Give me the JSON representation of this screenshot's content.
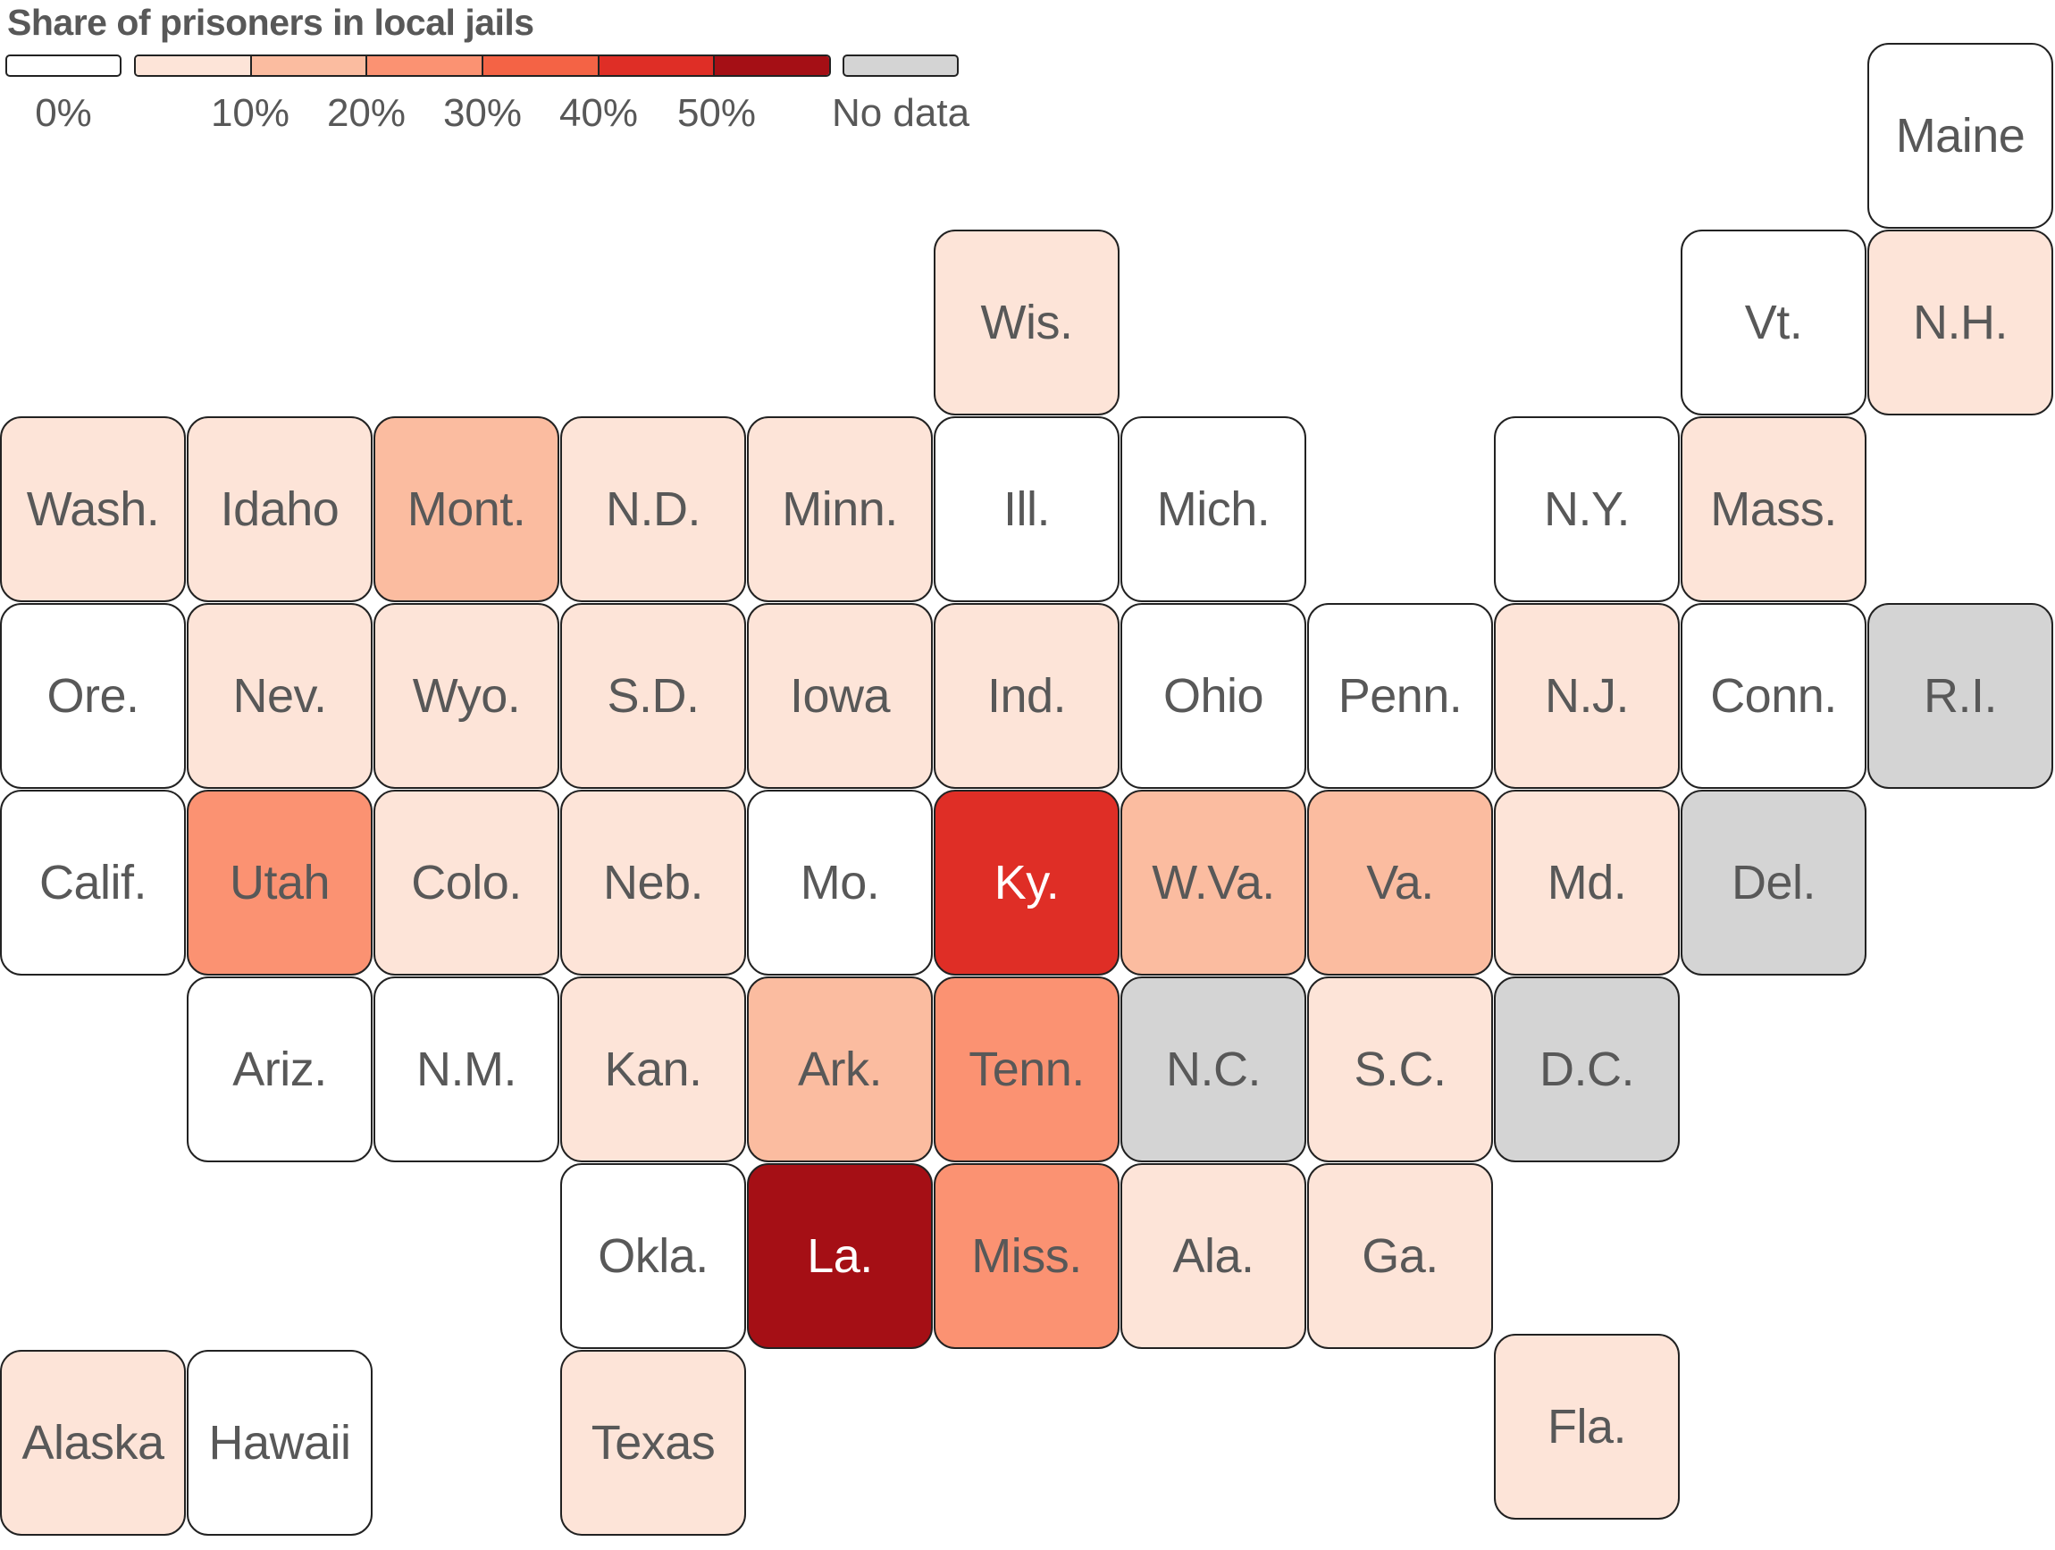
{
  "title": "Share of prisoners in local jails",
  "legend": {
    "zero_label": "0%",
    "tick_labels": [
      "10%",
      "20%",
      "30%",
      "40%",
      "50%"
    ],
    "no_data_label": "No data",
    "colors": {
      "zero": "#ffffff",
      "bins": [
        "#fde4d8",
        "#fbbca0",
        "#fb9272",
        "#f46345",
        "#df2e26",
        "#a50f15"
      ],
      "no_data": "#d4d4d4"
    }
  },
  "chart_data": {
    "type": "heatmap",
    "title": "Share of prisoners in local jails",
    "legend_bins": [
      "0%",
      "0-10%",
      "10-20%",
      "20-30%",
      "30-40%",
      "40-50%",
      "50%+",
      "No data"
    ],
    "states": [
      {
        "label": "Maine",
        "row": 0,
        "col": 10,
        "bin": "0%"
      },
      {
        "label": "Wis.",
        "row": 1,
        "col": 5,
        "bin": "0-10%"
      },
      {
        "label": "Vt.",
        "row": 1,
        "col": 9,
        "bin": "0%"
      },
      {
        "label": "N.H.",
        "row": 1,
        "col": 10,
        "bin": "0-10%"
      },
      {
        "label": "Wash.",
        "row": 2,
        "col": 0,
        "bin": "0-10%"
      },
      {
        "label": "Idaho",
        "row": 2,
        "col": 1,
        "bin": "0-10%"
      },
      {
        "label": "Mont.",
        "row": 2,
        "col": 2,
        "bin": "10-20%"
      },
      {
        "label": "N.D.",
        "row": 2,
        "col": 3,
        "bin": "0-10%"
      },
      {
        "label": "Minn.",
        "row": 2,
        "col": 4,
        "bin": "0-10%"
      },
      {
        "label": "Ill.",
        "row": 2,
        "col": 5,
        "bin": "0%"
      },
      {
        "label": "Mich.",
        "row": 2,
        "col": 6,
        "bin": "0%"
      },
      {
        "label": "N.Y.",
        "row": 2,
        "col": 8,
        "bin": "0%"
      },
      {
        "label": "Mass.",
        "row": 2,
        "col": 9,
        "bin": "0-10%"
      },
      {
        "label": "Ore.",
        "row": 3,
        "col": 0,
        "bin": "0%"
      },
      {
        "label": "Nev.",
        "row": 3,
        "col": 1,
        "bin": "0-10%"
      },
      {
        "label": "Wyo.",
        "row": 3,
        "col": 2,
        "bin": "0-10%"
      },
      {
        "label": "S.D.",
        "row": 3,
        "col": 3,
        "bin": "0-10%"
      },
      {
        "label": "Iowa",
        "row": 3,
        "col": 4,
        "bin": "0-10%"
      },
      {
        "label": "Ind.",
        "row": 3,
        "col": 5,
        "bin": "0-10%"
      },
      {
        "label": "Ohio",
        "row": 3,
        "col": 6,
        "bin": "0%"
      },
      {
        "label": "Penn.",
        "row": 3,
        "col": 7,
        "bin": "0%"
      },
      {
        "label": "N.J.",
        "row": 3,
        "col": 8,
        "bin": "0-10%"
      },
      {
        "label": "Conn.",
        "row": 3,
        "col": 9,
        "bin": "0%"
      },
      {
        "label": "R.I.",
        "row": 3,
        "col": 10,
        "bin": "No data"
      },
      {
        "label": "Calif.",
        "row": 4,
        "col": 0,
        "bin": "0%"
      },
      {
        "label": "Utah",
        "row": 4,
        "col": 1,
        "bin": "20-30%"
      },
      {
        "label": "Colo.",
        "row": 4,
        "col": 2,
        "bin": "0-10%"
      },
      {
        "label": "Neb.",
        "row": 4,
        "col": 3,
        "bin": "0-10%"
      },
      {
        "label": "Mo.",
        "row": 4,
        "col": 4,
        "bin": "0%"
      },
      {
        "label": "Ky.",
        "row": 4,
        "col": 5,
        "bin": "40-50%"
      },
      {
        "label": "W.Va.",
        "row": 4,
        "col": 6,
        "bin": "10-20%"
      },
      {
        "label": "Va.",
        "row": 4,
        "col": 7,
        "bin": "10-20%"
      },
      {
        "label": "Md.",
        "row": 4,
        "col": 8,
        "bin": "0-10%"
      },
      {
        "label": "Del.",
        "row": 4,
        "col": 9,
        "bin": "No data"
      },
      {
        "label": "Ariz.",
        "row": 5,
        "col": 1,
        "bin": "0%"
      },
      {
        "label": "N.M.",
        "row": 5,
        "col": 2,
        "bin": "0%"
      },
      {
        "label": "Kan.",
        "row": 5,
        "col": 3,
        "bin": "0-10%"
      },
      {
        "label": "Ark.",
        "row": 5,
        "col": 4,
        "bin": "10-20%"
      },
      {
        "label": "Tenn.",
        "row": 5,
        "col": 5,
        "bin": "20-30%"
      },
      {
        "label": "N.C.",
        "row": 5,
        "col": 6,
        "bin": "No data"
      },
      {
        "label": "S.C.",
        "row": 5,
        "col": 7,
        "bin": "0-10%"
      },
      {
        "label": "D.C.",
        "row": 5,
        "col": 8,
        "bin": "No data"
      },
      {
        "label": "Okla.",
        "row": 6,
        "col": 3,
        "bin": "0%"
      },
      {
        "label": "La.",
        "row": 6,
        "col": 4,
        "bin": "50%+"
      },
      {
        "label": "Miss.",
        "row": 6,
        "col": 5,
        "bin": "20-30%"
      },
      {
        "label": "Ala.",
        "row": 6,
        "col": 6,
        "bin": "0-10%"
      },
      {
        "label": "Ga.",
        "row": 6,
        "col": 7,
        "bin": "0-10%"
      },
      {
        "label": "Alaska",
        "row": 7,
        "col": 0,
        "bin": "0-10%"
      },
      {
        "label": "Hawaii",
        "row": 7,
        "col": 1,
        "bin": "0%"
      },
      {
        "label": "Texas",
        "row": 7,
        "col": 3,
        "bin": "0-10%"
      },
      {
        "label": "Fla.",
        "row": 7,
        "col": 8,
        "bin": "0-10%"
      }
    ]
  }
}
